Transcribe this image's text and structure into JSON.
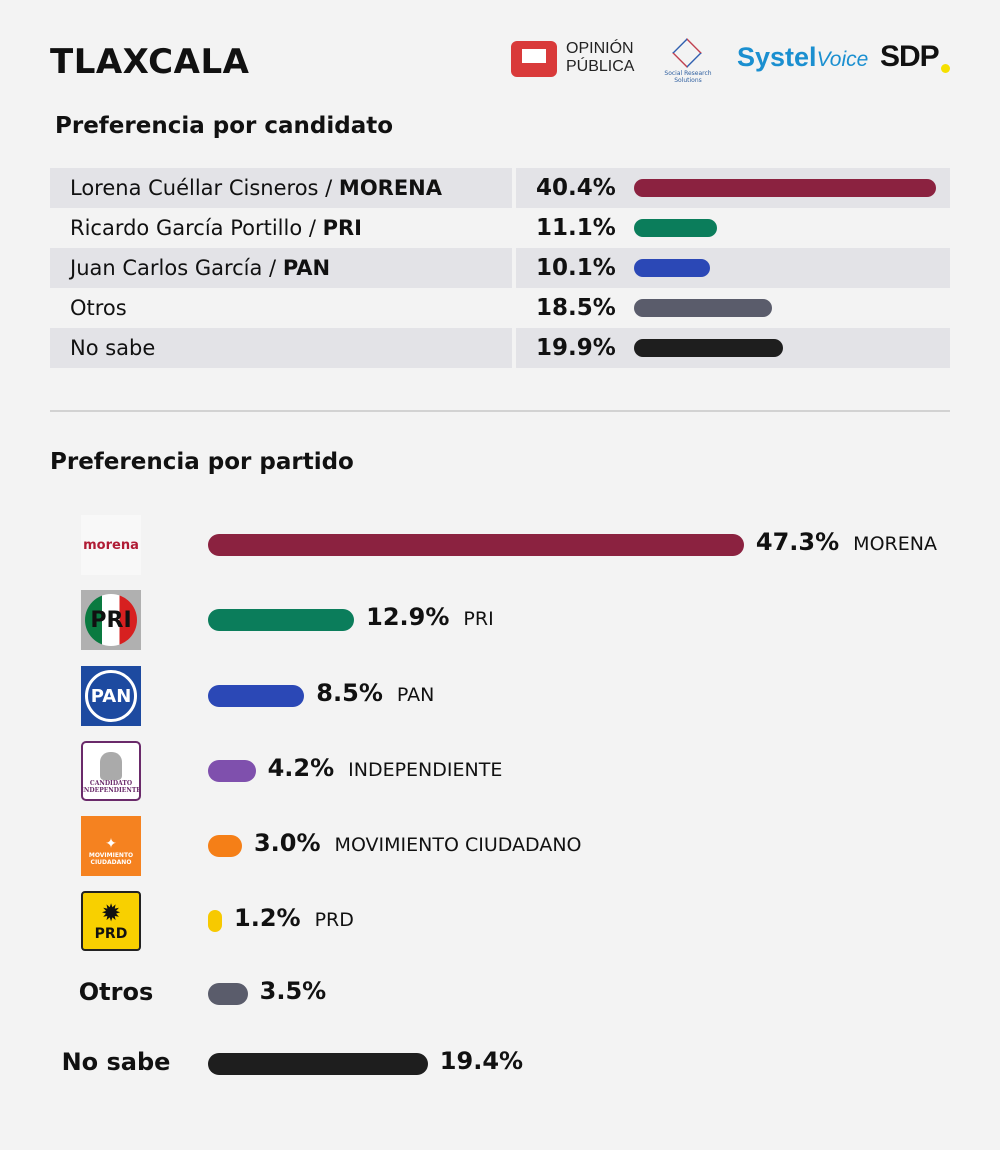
{
  "title": "TLAXCALA",
  "logos": {
    "opinion_publica": "OPINIÓN PÚBLICA",
    "srs": "Social Research Solutions",
    "systel": "Systel",
    "systel_voice": "Voice",
    "sdp": "SDP"
  },
  "chart_data": [
    {
      "type": "bar",
      "title": "Preferencia por candidato",
      "unit": "%",
      "categories": [
        "Lorena Cuéllar Cisneros / MORENA",
        "Ricardo García Portillo / PRI",
        "Juan Carlos García / PAN",
        "Otros",
        "No sabe"
      ],
      "rows": [
        {
          "name": "Lorena Cuéllar Cisneros / ",
          "party": "MORENA",
          "value": 40.4,
          "label": "40.4%",
          "color": "#8b2240"
        },
        {
          "name": "Ricardo García Portillo / ",
          "party": "PRI",
          "value": 11.1,
          "label": "11.1%",
          "color": "#0b7d5b"
        },
        {
          "name": "Juan Carlos García / ",
          "party": "PAN",
          "value": 10.1,
          "label": "10.1%",
          "color": "#2b48b6"
        },
        {
          "name": "Otros",
          "party": "",
          "value": 18.5,
          "label": "18.5%",
          "color": "#5a5c6b"
        },
        {
          "name": "No sabe",
          "party": "",
          "value": 19.9,
          "label": "19.9%",
          "color": "#1e1e1e"
        }
      ]
    },
    {
      "type": "bar",
      "title": "Preferencia por partido",
      "unit": "%",
      "rows": [
        {
          "party": "MORENA",
          "logo": "morena",
          "logo_text": "morena",
          "value": 47.3,
          "label": "47.3%",
          "color": "#8b2240"
        },
        {
          "party": "PRI",
          "logo": "pri",
          "logo_text": "PRI",
          "value": 12.9,
          "label": "12.9%",
          "color": "#0b7d5b"
        },
        {
          "party": "PAN",
          "logo": "pan",
          "logo_text": "PAN",
          "value": 8.5,
          "label": "8.5%",
          "color": "#2b48b6"
        },
        {
          "party": "INDEPENDIENTE",
          "logo": "independiente",
          "logo_text": "CANDIDATO INDEPENDIENTE",
          "value": 4.2,
          "label": "4.2%",
          "color": "#7f50ad"
        },
        {
          "party": "MOVIMIENTO CIUDADANO",
          "logo": "mc",
          "logo_text": "MOVIMIENTO CIUDADANO",
          "value": 3.0,
          "label": "3.0%",
          "color": "#f57f17"
        },
        {
          "party": "PRD",
          "logo": "prd",
          "logo_text": "PRD",
          "value": 1.2,
          "label": "1.2%",
          "color": "#f7c900"
        },
        {
          "party": "",
          "text_label": "Otros",
          "value": 3.5,
          "label": "3.5%",
          "color": "#5a5c6b"
        },
        {
          "party": "",
          "text_label": "No sabe",
          "value": 19.4,
          "label": "19.4%",
          "color": "#1e1e1e"
        }
      ]
    }
  ]
}
